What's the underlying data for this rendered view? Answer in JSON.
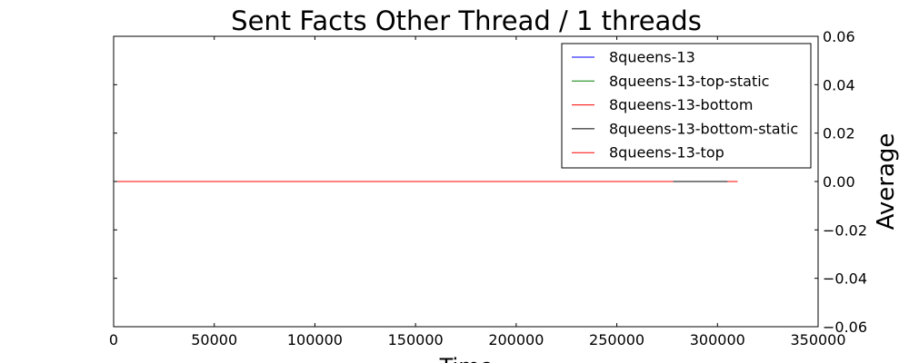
{
  "chart_data": {
    "type": "line",
    "title": "Sent Facts Other Thread / 1 threads",
    "xlabel": "Time",
    "ylabel": "Average",
    "xlim": [
      0,
      350000
    ],
    "ylim": [
      -0.06,
      0.06
    ],
    "x_ticks": [
      0,
      50000,
      100000,
      150000,
      200000,
      250000,
      300000,
      350000
    ],
    "x_tick_labels": [
      "0",
      "50000",
      "100000",
      "150000",
      "200000",
      "250000",
      "300000",
      "350000"
    ],
    "y_ticks": [
      0.06,
      0.04,
      0.02,
      0.0,
      -0.02,
      -0.04,
      -0.06
    ],
    "y_tick_labels": [
      "0.06",
      "0.04",
      "0.02",
      "0.00",
      "−0.02",
      "−0.04",
      "−0.06"
    ],
    "y_axis_side": "right",
    "grid": false,
    "legend_position": "top-right",
    "series": [
      {
        "name": "8queens-13",
        "color": "#0000ff",
        "x": [
          0,
          305000
        ],
        "values": [
          0,
          0
        ]
      },
      {
        "name": "8queens-13-top-static",
        "color": "#008000",
        "x": [
          0,
          300000
        ],
        "values": [
          0,
          0
        ]
      },
      {
        "name": "8queens-13-bottom",
        "color": "#ff0000",
        "x": [
          0,
          310000
        ],
        "values": [
          0,
          0
        ]
      },
      {
        "name": "8queens-13-bottom-static",
        "color": "#000000",
        "x": [
          0,
          305000
        ],
        "values": [
          0,
          0
        ]
      },
      {
        "name": "8queens-13-top",
        "color": "#ff0000",
        "x": [
          0,
          278000
        ],
        "values": [
          0,
          0
        ]
      }
    ]
  }
}
